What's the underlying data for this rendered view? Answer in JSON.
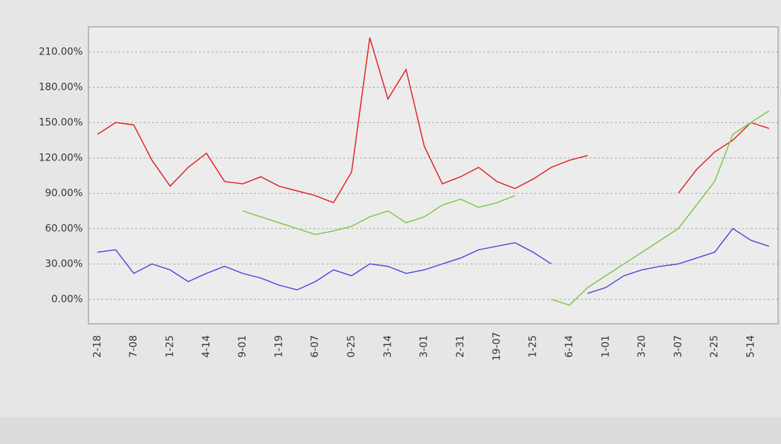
{
  "chart_data": {
    "type": "line",
    "categories": [
      "2-18",
      null,
      "7-08",
      null,
      "1-25",
      null,
      "4-14",
      null,
      "9-01",
      null,
      "1-19",
      null,
      "6-07",
      null,
      "0-25",
      null,
      "3-14",
      null,
      "3-01",
      null,
      "2-31",
      null,
      "19-07",
      null,
      "1-25",
      null,
      "6-14",
      null,
      "1-01",
      null,
      "3-20",
      null,
      "3-07",
      null,
      "2-25",
      null,
      "5-14",
      null
    ],
    "series": [
      {
        "color": "#e02020",
        "values": [
          140,
          150,
          148,
          118,
          96,
          112,
          124,
          100,
          98,
          104,
          96,
          92,
          88,
          82,
          108,
          222,
          170,
          195,
          130,
          98,
          104,
          112,
          100,
          94,
          102,
          112,
          118,
          122,
          null,
          null,
          null,
          null,
          90,
          110,
          125,
          135,
          150,
          145
        ]
      },
      {
        "color": "#4a4ae0",
        "values": [
          40,
          42,
          22,
          30,
          25,
          15,
          22,
          28,
          22,
          18,
          12,
          8,
          15,
          25,
          20,
          30,
          28,
          22,
          25,
          30,
          35,
          42,
          45,
          48,
          40,
          30,
          null,
          5,
          10,
          20,
          25,
          28,
          30,
          35,
          40,
          60,
          50,
          45
        ]
      },
      {
        "color": "#7ac74a",
        "values": [
          null,
          null,
          null,
          null,
          null,
          null,
          null,
          null,
          75,
          70,
          65,
          60,
          55,
          58,
          62,
          70,
          75,
          65,
          70,
          80,
          85,
          78,
          82,
          88,
          null,
          0,
          -5,
          10,
          20,
          30,
          40,
          50,
          60,
          80,
          100,
          140,
          150,
          160
        ]
      }
    ],
    "ylim": [
      -10,
      230
    ],
    "yticks": [
      {
        "value": 0,
        "label": "0.00%"
      },
      {
        "value": 30,
        "label": "30.00%"
      },
      {
        "value": 60,
        "label": "60.00%"
      },
      {
        "value": 90,
        "label": "90.00%"
      },
      {
        "value": 120,
        "label": "120.00%"
      },
      {
        "value": 150,
        "label": "150.00%"
      },
      {
        "value": 180,
        "label": "180.00%"
      },
      {
        "value": 210,
        "label": "210.00%"
      }
    ],
    "grid": true
  }
}
